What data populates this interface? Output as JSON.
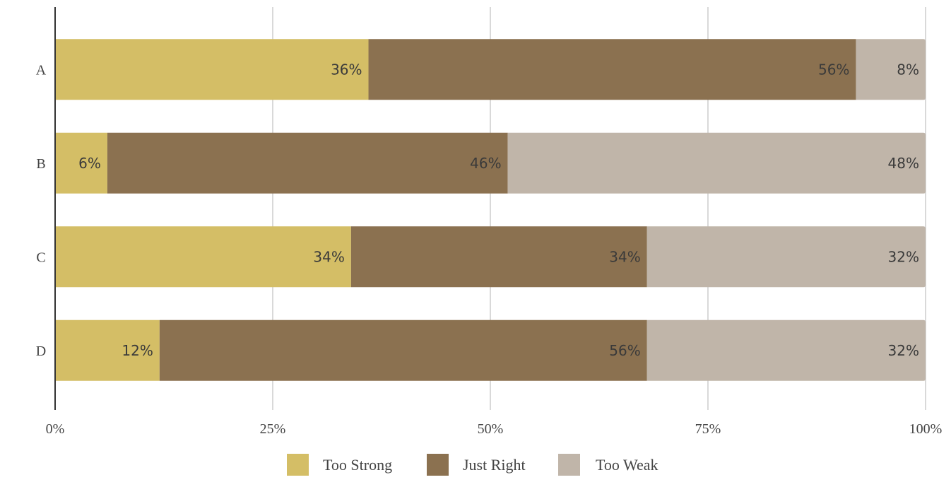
{
  "chart_data": {
    "type": "bar",
    "orientation": "horizontal",
    "stacked": true,
    "title": "",
    "xlabel": "",
    "ylabel": "",
    "categories": [
      "A",
      "B",
      "C",
      "D"
    ],
    "series": [
      {
        "name": "Too Strong",
        "values": [
          36,
          6,
          34,
          12
        ],
        "labels": [
          "36%",
          "6%",
          "34%",
          "12%"
        ],
        "color": "#D4BE66"
      },
      {
        "name": "Just Right",
        "values": [
          56,
          46,
          34,
          56
        ],
        "labels": [
          "56%",
          "46%",
          "34%",
          "56%"
        ],
        "color": "#8B7150"
      },
      {
        "name": "Too Weak",
        "values": [
          8,
          48,
          32,
          32
        ],
        "labels": [
          "8%",
          "48%",
          "32%",
          "32%"
        ],
        "color": "#C0B5A9"
      }
    ],
    "xlim": [
      0,
      100
    ],
    "x_ticks": [
      0,
      25,
      50,
      75,
      100
    ],
    "x_tick_labels": [
      "0%",
      "25%",
      "50%",
      "75%",
      "100%"
    ],
    "grid": "vertical",
    "legend": "bottom-center",
    "gridline_color": "#D9D9D9",
    "axis_color": "#333333"
  }
}
